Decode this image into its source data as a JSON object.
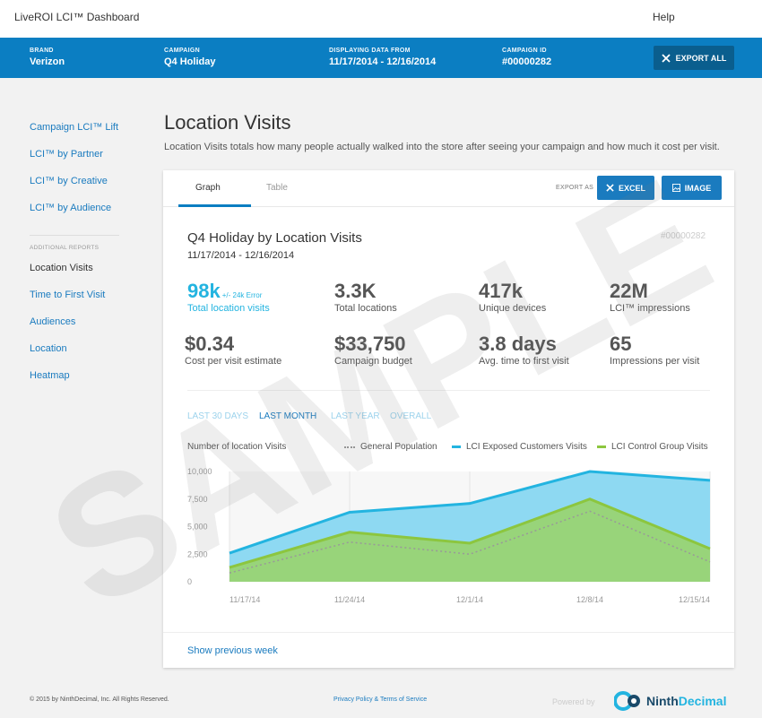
{
  "topbar": {
    "title": "LiveROI LCI™ Dashboard",
    "help": "Help"
  },
  "campaign_bar": {
    "brand_label": "BRAND",
    "brand": "Verizon",
    "campaign_label": "CAMPAIGN",
    "campaign": "Q4 Holiday",
    "range_label": "DISPLAYING DATA FROM",
    "range": "11/17/2014 - 12/16/2014",
    "id_label": "CAMPAIGN ID",
    "id": "#00000282",
    "export_all": "EXPORT ALL"
  },
  "sidebar": {
    "items": [
      "Campaign LCI™ Lift",
      "LCI™ by Partner",
      "LCI™ by Creative",
      "LCI™ by Audience"
    ],
    "section": "ADDITIONAL REPORTS",
    "additional": [
      "Location Visits",
      "Time to First Visit",
      "Audiences",
      "Location",
      "Heatmap"
    ]
  },
  "page": {
    "title": "Location Visits",
    "description": "Location Visits totals how many people actually walked into the store after seeing your campaign and how much it cost per visit."
  },
  "card": {
    "tabs": [
      "Graph",
      "Table"
    ],
    "export_as": "EXPORT AS",
    "excel": "EXCEL",
    "image": "IMAGE",
    "title": "Q4 Holiday by Location Visits",
    "dates": "11/17/2014 - 12/16/2014",
    "id": "#00000282",
    "stats": [
      {
        "value": "98k",
        "error": "+/- 24k Error",
        "label": "Total location visits"
      },
      {
        "value": "3.3K",
        "label": "Total locations"
      },
      {
        "value": "417k",
        "label": "Unique devices"
      },
      {
        "value": "22M",
        "label": "LCI™ impressions"
      },
      {
        "value": "$0.34",
        "label": "Cost per visit estimate"
      },
      {
        "value": "$33,750",
        "label": "Campaign budget"
      },
      {
        "value": "3.8 days",
        "label": "Avg. time to first visit"
      },
      {
        "value": "65",
        "label": "Impressions per visit"
      }
    ],
    "ranges": [
      "LAST 30 DAYS",
      "LAST MONTH",
      "LAST YEAR",
      "OVERALL"
    ],
    "show_previous": "Show previous week"
  },
  "chart_data": {
    "type": "area",
    "ylabel": "Number of location Visits",
    "ylim": [
      0,
      10000
    ],
    "yticks": [
      "10,000",
      "7,500",
      "5,000",
      "2,500",
      "0"
    ],
    "x": [
      "11/17/14",
      "11/24/14",
      "12/1/14",
      "12/8/14",
      "12/15/14"
    ],
    "points_x": [
      0,
      7,
      14,
      21,
      28
    ],
    "series": [
      {
        "name": "LCI Exposed Customers Visits",
        "color": "#23b4e0",
        "points": [
          [
            0,
            2600
          ],
          [
            7,
            6300
          ],
          [
            14,
            7100
          ],
          [
            21,
            10000
          ],
          [
            28,
            9200
          ]
        ]
      },
      {
        "name": "LCI Control Group Visits",
        "color": "#8cc63f",
        "points": [
          [
            0,
            1300
          ],
          [
            7,
            4500
          ],
          [
            14,
            3500
          ],
          [
            21,
            7500
          ],
          [
            28,
            3000
          ]
        ]
      },
      {
        "name": "General Population",
        "color": "#999999",
        "points": [
          [
            0,
            800
          ],
          [
            7,
            3600
          ],
          [
            14,
            2500
          ],
          [
            21,
            6400
          ],
          [
            28,
            1800
          ]
        ]
      }
    ]
  },
  "footer": {
    "copyright": "© 2015 by NinthDecimal, Inc. All Rights Reserved.",
    "links": "Privacy Policy & Terms of Service",
    "powered_by": "Powered by",
    "brand_a": "Ninth",
    "brand_b": "Decimal"
  },
  "watermark": "SAMPLE"
}
